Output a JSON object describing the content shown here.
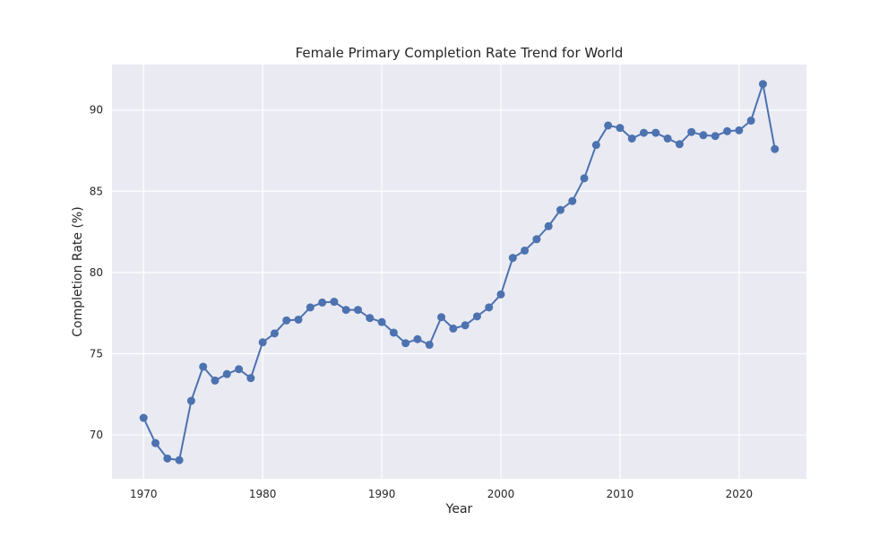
{
  "chart_data": {
    "type": "line",
    "title": "Female Primary Completion Rate Trend for World",
    "xlabel": "Year",
    "ylabel": "Completion Rate (%)",
    "xlim": [
      1967.35,
      2025.65
    ],
    "ylim": [
      67.3,
      92.8
    ],
    "xticks": [
      1970,
      1980,
      1990,
      2000,
      2010,
      2020
    ],
    "yticks": [
      70,
      75,
      80,
      85,
      90
    ],
    "grid": true,
    "legend": "none",
    "colors": {
      "line": "#4c72b0",
      "background": "#eaeaf2",
      "grid": "#ffffff"
    },
    "series": [
      {
        "x": [
          1970,
          1971,
          1972,
          1973,
          1974,
          1975,
          1976,
          1977,
          1978,
          1979,
          1980,
          1981,
          1982,
          1983,
          1984,
          1985,
          1986,
          1987,
          1988,
          1989,
          1990,
          1991,
          1992,
          1993,
          1994,
          1995,
          1996,
          1997,
          1998,
          1999,
          2000,
          2001,
          2002,
          2003,
          2004,
          2005,
          2006,
          2007,
          2008,
          2009,
          2010,
          2011,
          2012,
          2013,
          2014,
          2015,
          2016,
          2017,
          2018,
          2019,
          2020,
          2021,
          2022,
          2023
        ],
        "values": [
          71.05,
          69.5,
          68.55,
          68.45,
          72.1,
          74.2,
          73.35,
          73.75,
          74.05,
          73.5,
          75.7,
          76.25,
          77.05,
          77.1,
          77.85,
          78.15,
          78.2,
          77.7,
          77.7,
          77.2,
          76.95,
          76.3,
          75.65,
          75.9,
          75.55,
          77.25,
          76.55,
          76.75,
          77.3,
          77.85,
          78.65,
          80.9,
          81.35,
          82.05,
          82.85,
          83.85,
          84.4,
          85.8,
          87.85,
          89.05,
          88.9,
          88.25,
          88.6,
          88.6,
          88.25,
          87.9,
          88.65,
          88.45,
          88.4,
          88.7,
          88.75,
          89.35,
          91.6,
          87.6
        ]
      }
    ]
  }
}
